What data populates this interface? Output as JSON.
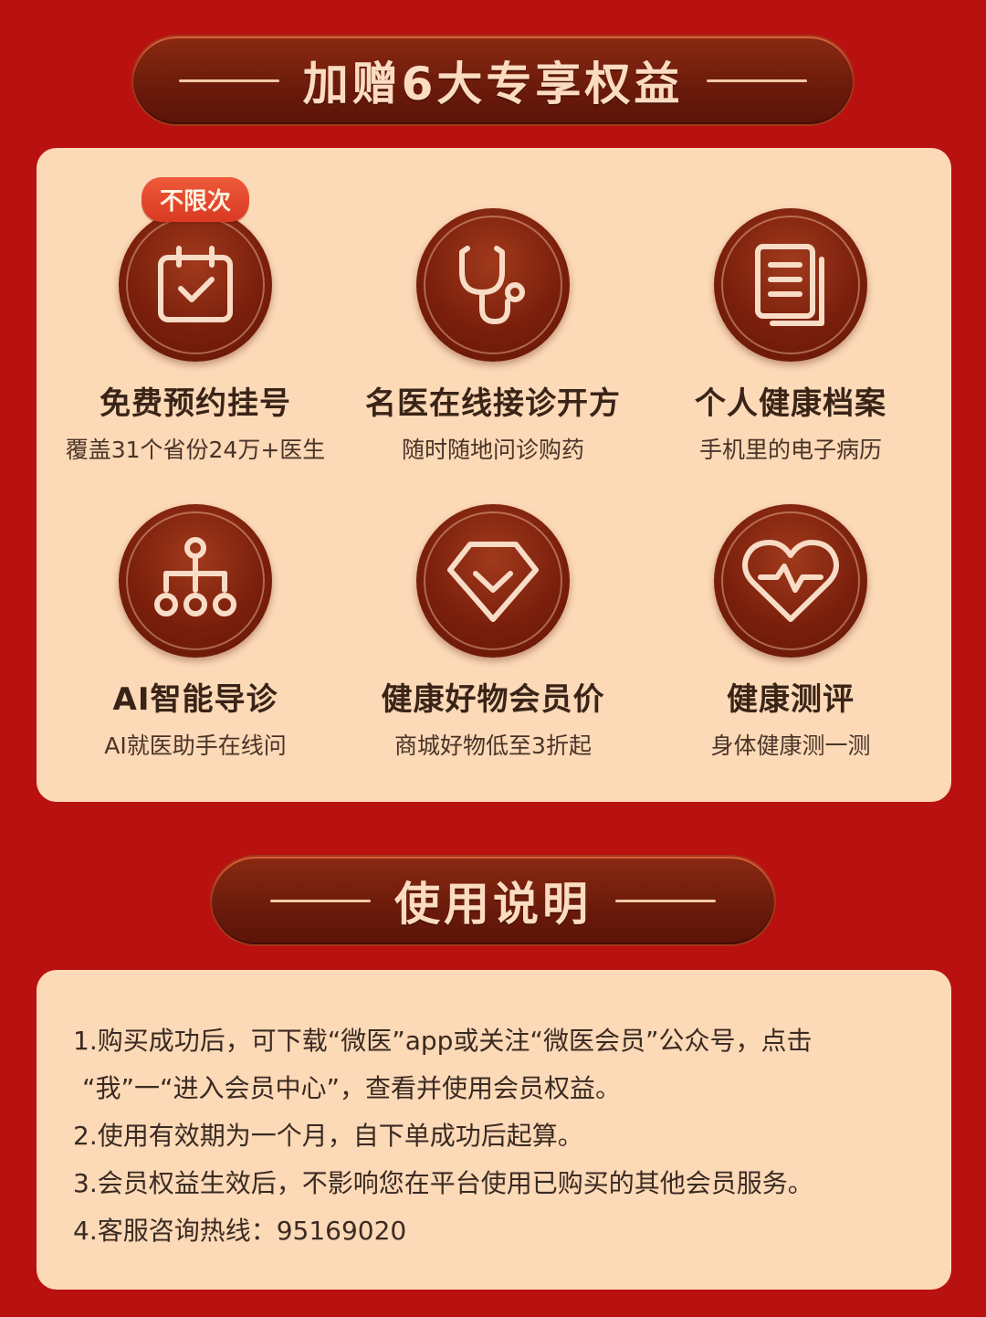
{
  "colors": {
    "background": "#b8110f",
    "card": "#fcd9b7",
    "banner": "#6b1a0b",
    "tag": "#e24a2e"
  },
  "section1": {
    "title": "加赠6大专享权益",
    "benefits": [
      {
        "icon": "calendar-check-icon",
        "tag": "不限次",
        "title": "免费预约挂号",
        "subtitle": "覆盖31个省份24万+医生"
      },
      {
        "icon": "stethoscope-icon",
        "title": "名医在线接诊开方",
        "subtitle": "随时随地问诊购药"
      },
      {
        "icon": "document-files-icon",
        "title": "个人健康档案",
        "subtitle": "手机里的电子病历"
      },
      {
        "icon": "hierarchy-tree-icon",
        "title": "AI智能导诊",
        "subtitle": "AI就医助手在线问"
      },
      {
        "icon": "diamond-badge-icon",
        "title": "健康好物会员价",
        "subtitle": "商城好物低至3折起"
      },
      {
        "icon": "heart-pulse-icon",
        "title": "健康测评",
        "subtitle": "身体健康测一测"
      }
    ]
  },
  "section2": {
    "title": "使用说明",
    "notes": [
      "1.购买成功后，可下载“微医”app或关注“微医会员”公众号，点击",
      "“我”一“进入会员中心”，查看并使用会员权益。",
      "2.使用有效期为一个月，自下单成功后起算。",
      "3.会员权益生效后，不影响您在平台使用已购买的其他会员服务。",
      "4.客服咨询热线：95169020"
    ]
  }
}
